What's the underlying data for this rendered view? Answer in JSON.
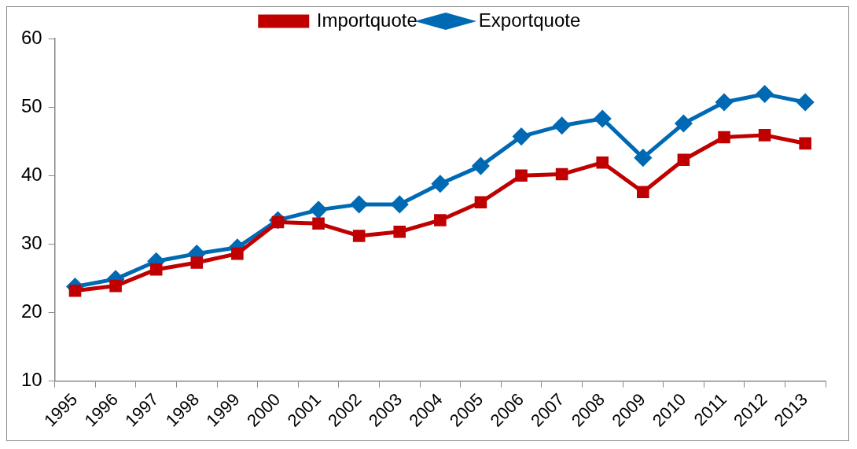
{
  "chart_data": {
    "type": "line",
    "categories": [
      "1995",
      "1996",
      "1997",
      "1998",
      "1999",
      "2000",
      "2001",
      "2002",
      "2003",
      "2004",
      "2005",
      "2006",
      "2007",
      "2008",
      "2009",
      "2010",
      "2011",
      "2012",
      "2013"
    ],
    "series": [
      {
        "name": "Exportquote",
        "color": "#0069b4",
        "marker": "diamond",
        "values": [
          23.8,
          24.9,
          27.5,
          28.6,
          29.5,
          33.5,
          35.0,
          35.8,
          35.8,
          38.8,
          41.4,
          45.7,
          47.3,
          48.3,
          42.6,
          47.6,
          50.7,
          51.9,
          50.7
        ]
      },
      {
        "name": "Importquote",
        "color": "#c00000",
        "marker": "square",
        "values": [
          23.2,
          23.9,
          26.3,
          27.3,
          28.6,
          33.2,
          33.0,
          31.2,
          31.8,
          33.5,
          36.1,
          40.0,
          40.2,
          41.9,
          37.6,
          42.3,
          45.6,
          45.9,
          44.7
        ]
      }
    ],
    "ylim": [
      10,
      60
    ],
    "yticks": [
      10,
      20,
      30,
      40,
      50,
      60
    ],
    "grid": false,
    "legend": "top",
    "line_style": "solid"
  }
}
